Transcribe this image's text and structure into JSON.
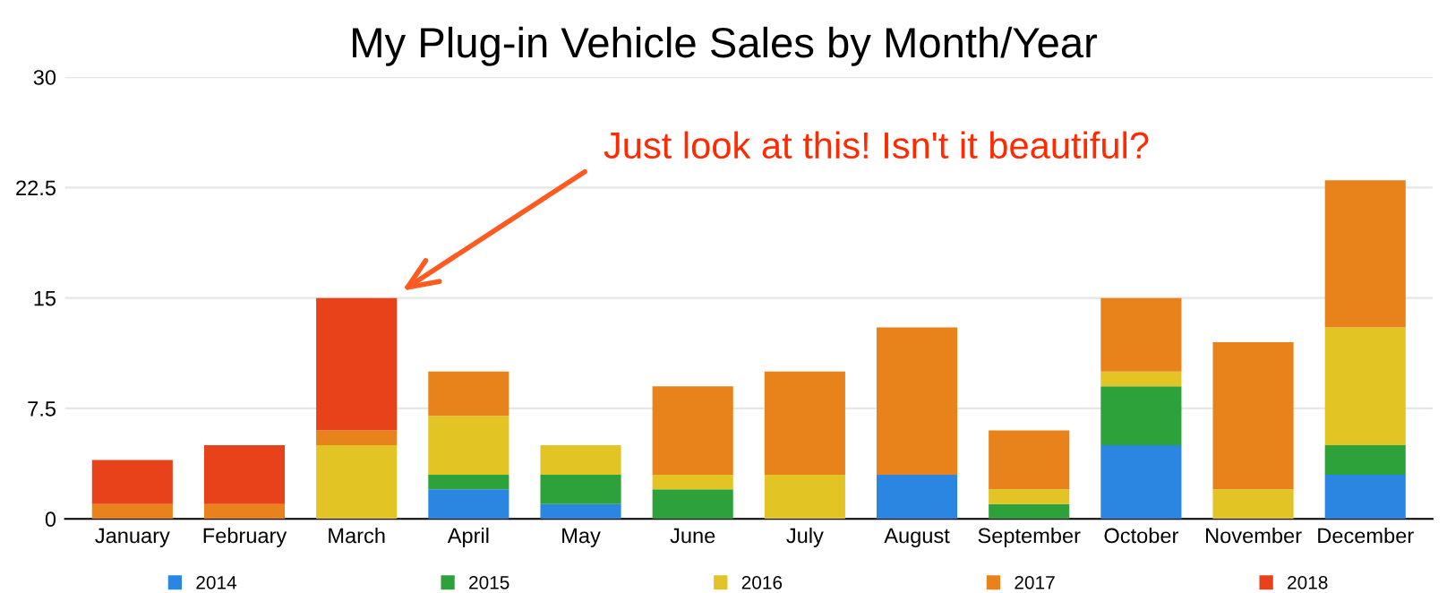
{
  "chart_data": {
    "type": "bar",
    "title": "My Plug-in Vehicle Sales by Month/Year",
    "categories": [
      "January",
      "February",
      "March",
      "April",
      "May",
      "June",
      "July",
      "August",
      "September",
      "October",
      "November",
      "December"
    ],
    "stacked": true,
    "series": [
      {
        "name": "2014",
        "color": "#2a86e0",
        "values": [
          0,
          0,
          0,
          2,
          1,
          0,
          0,
          3,
          0,
          5,
          0,
          3
        ]
      },
      {
        "name": "2015",
        "color": "#2ea23a",
        "values": [
          0,
          0,
          0,
          1,
          2,
          2,
          0,
          0,
          1,
          4,
          0,
          2
        ]
      },
      {
        "name": "2016",
        "color": "#e2c424",
        "values": [
          0,
          0,
          5,
          4,
          2,
          1,
          3,
          0,
          1,
          1,
          2,
          8
        ]
      },
      {
        "name": "2017",
        "color": "#e8821a",
        "values": [
          1,
          1,
          1,
          3,
          0,
          6,
          7,
          10,
          4,
          5,
          10,
          10
        ]
      },
      {
        "name": "2018",
        "color": "#e8421a",
        "values": [
          3,
          4,
          9,
          0,
          0,
          0,
          0,
          0,
          0,
          0,
          0,
          0
        ]
      }
    ],
    "ylim": [
      0,
      30
    ],
    "yticks": [
      0,
      7.5,
      15,
      22.5,
      30
    ],
    "grid": "y",
    "legend": "bottom",
    "annotations": [
      "Just look at this! Isn't it beautiful?"
    ]
  }
}
